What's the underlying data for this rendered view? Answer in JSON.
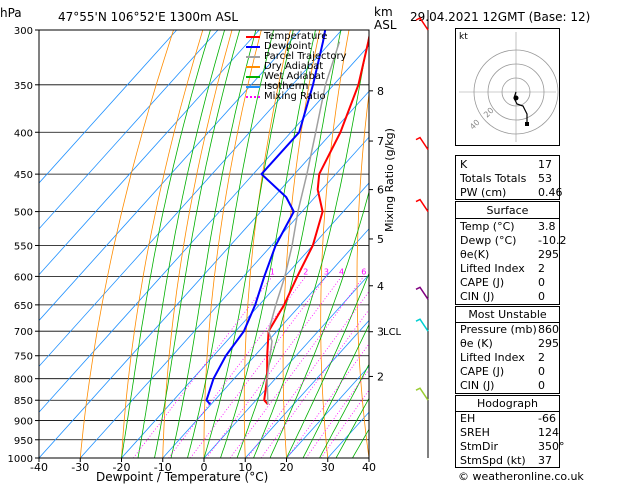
{
  "header": {
    "hpa_unit": "hPa",
    "location": "47°55'N  106°52'E  1300m  ASL",
    "km_unit": "km",
    "asl_unit": "ASL",
    "datetime": "29.04.2021  12GMT  (Base: 12)"
  },
  "footer": {
    "credit": "© weatheronline.co.uk"
  },
  "legend": [
    {
      "label": "Temperature",
      "color": "#ff0000",
      "style": "solid"
    },
    {
      "label": "Dewpoint",
      "color": "#0000ff",
      "style": "solid"
    },
    {
      "label": "Parcel Trajectory",
      "color": "#a0a0a0",
      "style": "solid"
    },
    {
      "label": "Dry Adiabat",
      "color": "#ff8c00",
      "style": "solid"
    },
    {
      "label": "Wet Adiabat",
      "color": "#00b000",
      "style": "solid"
    },
    {
      "label": "Isotherm",
      "color": "#1e90ff",
      "style": "solid"
    },
    {
      "label": "Mixing Ratio",
      "color": "#ff00ff",
      "style": "dotted"
    }
  ],
  "indices": {
    "rows": [
      {
        "key": "K",
        "value": "17"
      },
      {
        "key": "Totals Totals",
        "value": "53"
      },
      {
        "key": "PW (cm)",
        "value": "0.46"
      }
    ],
    "surface": {
      "title": "Surface",
      "rows": [
        {
          "key": "Temp (°C)",
          "value": "3.8"
        },
        {
          "key": "Dewp (°C)",
          "value": "-10.2"
        },
        {
          "key": "θe(K)",
          "value": "295"
        },
        {
          "key": "Lifted Index",
          "value": "2"
        },
        {
          "key": "CAPE (J)",
          "value": "0"
        },
        {
          "key": "CIN (J)",
          "value": "0"
        }
      ]
    },
    "most_unstable": {
      "title": "Most Unstable",
      "rows": [
        {
          "key": "Pressure (mb)",
          "value": "860"
        },
        {
          "key": "θe (K)",
          "value": "295"
        },
        {
          "key": "Lifted Index",
          "value": "2"
        },
        {
          "key": "CAPE (J)",
          "value": "0"
        },
        {
          "key": "CIN (J)",
          "value": "0"
        }
      ]
    },
    "hodograph": {
      "title": "Hodograph",
      "rows": [
        {
          "key": "EH",
          "value": "-66"
        },
        {
          "key": "SREH",
          "value": "124"
        },
        {
          "key": "StmDir",
          "value": "350°"
        },
        {
          "key": "StmSpd (kt)",
          "value": "37"
        }
      ]
    }
  },
  "hodo_panel": {
    "unit_label": "kt",
    "ring_labels": [
      "20",
      "40"
    ]
  },
  "chart_data": {
    "type": "line",
    "title": "",
    "xlabel": "Dewpoint / Temperature (°C)",
    "ylabel": "hPa",
    "right_axis_label": "Mixing Ratio (g/kg)",
    "xlim": [
      -40,
      40
    ],
    "ylim_hpa": [
      1000,
      300
    ],
    "x_ticks": [
      "-40",
      "-30",
      "-20",
      "-10",
      "0",
      "10",
      "20",
      "30",
      "40"
    ],
    "y_ticks": [
      "300",
      "350",
      "400",
      "450",
      "500",
      "550",
      "600",
      "650",
      "700",
      "750",
      "800",
      "850",
      "900",
      "950",
      "1000"
    ],
    "km_ticks": [
      {
        "label": "8",
        "hpa": 356
      },
      {
        "label": "7",
        "hpa": 410
      },
      {
        "label": "6",
        "hpa": 470
      },
      {
        "label": "5",
        "hpa": 540
      },
      {
        "label": "4",
        "hpa": 616
      },
      {
        "label": "3",
        "hpa": 701
      },
      {
        "label": "2",
        "hpa": 795
      }
    ],
    "lcl_label": "LCL",
    "lcl_hpa": 700,
    "mixing_ratio_labels": [
      "1",
      "2",
      "3",
      "4",
      "6",
      "8",
      "10",
      "15",
      "20",
      "25"
    ],
    "mixing_ratio_label_hpa": 600,
    "series": [
      {
        "name": "Temperature",
        "color": "#ff0000",
        "points": [
          [
            3.8,
            860
          ],
          [
            2,
            850
          ],
          [
            -2,
            800
          ],
          [
            -7,
            750
          ],
          [
            -12,
            700
          ],
          [
            -14,
            650
          ],
          [
            -17,
            600
          ],
          [
            -20,
            550
          ],
          [
            -25,
            500
          ],
          [
            -31,
            470
          ],
          [
            -34,
            450
          ],
          [
            -38,
            400
          ],
          [
            -44,
            350
          ],
          [
            -51,
            310
          ],
          [
            -53,
            300
          ]
        ]
      },
      {
        "name": "Dewpoint",
        "color": "#0000ff",
        "points": [
          [
            -10.2,
            860
          ],
          [
            -12,
            850
          ],
          [
            -15,
            800
          ],
          [
            -17,
            750
          ],
          [
            -18,
            700
          ],
          [
            -21,
            650
          ],
          [
            -25,
            600
          ],
          [
            -29,
            550
          ],
          [
            -32,
            500
          ],
          [
            -37,
            480
          ],
          [
            -48,
            450
          ],
          [
            -48,
            400
          ],
          [
            -55,
            350
          ],
          [
            -62,
            310
          ],
          [
            -64,
            300
          ]
        ]
      },
      {
        "name": "Parcel Trajectory",
        "color": "#a0a0a0",
        "points": [
          [
            3.8,
            860
          ],
          [
            -2,
            800
          ],
          [
            -9,
            720
          ],
          [
            -12,
            700
          ],
          [
            -16,
            650
          ],
          [
            -20,
            600
          ],
          [
            -25,
            550
          ],
          [
            -31,
            500
          ],
          [
            -37,
            450
          ],
          [
            -44,
            400
          ],
          [
            -52,
            350
          ],
          [
            -58,
            310
          ]
        ]
      }
    ]
  }
}
